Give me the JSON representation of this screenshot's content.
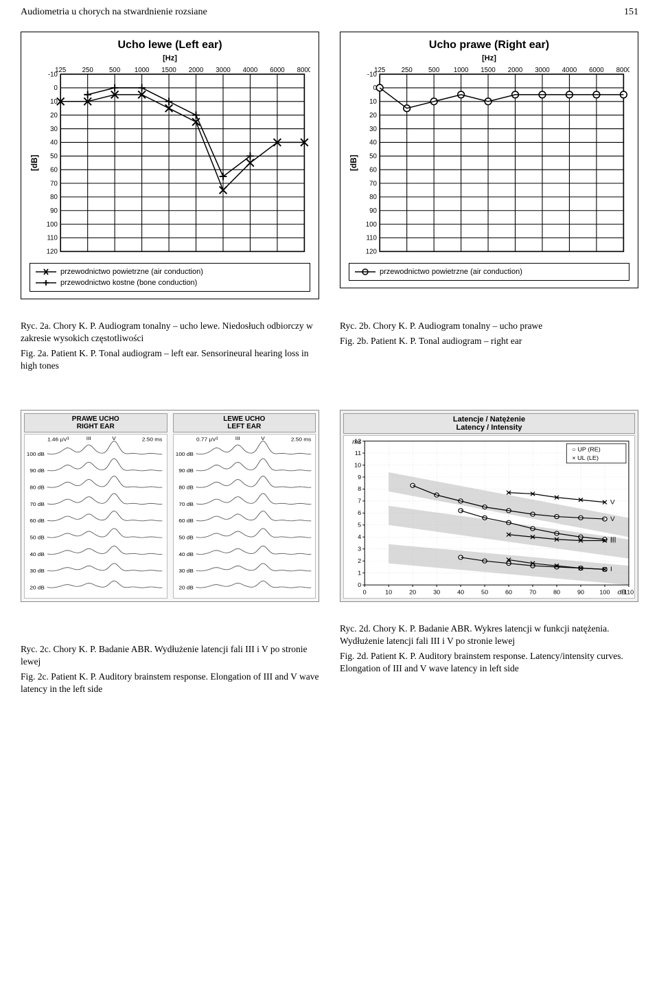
{
  "running_head": {
    "left": "Audiometria u chorych na stwardnienie rozsiane",
    "page": "151"
  },
  "audiogram_common": {
    "x_ticks": [
      125,
      250,
      500,
      1000,
      1500,
      2000,
      3000,
      4000,
      6000,
      8000
    ],
    "x_label": "[Hz]",
    "y_ticks": [
      -10,
      0,
      10,
      20,
      30,
      40,
      50,
      60,
      70,
      80,
      90,
      100,
      110,
      120
    ],
    "y_label": "[dB]",
    "grid_color": "#000000",
    "line_width": 1.4,
    "tick_fontsize": 9,
    "label_fontsize": 11,
    "title_fontsize": 16,
    "bg_color": "#ffffff",
    "box_border_color": "#000000"
  },
  "left_ear": {
    "title": "Ucho lewe (Left ear)",
    "air": {
      "marker": "x",
      "marker_size": 5,
      "color": "#000000",
      "data": [
        {
          "f": 125,
          "db": 10
        },
        {
          "f": 250,
          "db": 10
        },
        {
          "f": 500,
          "db": 5
        },
        {
          "f": 1000,
          "db": 5
        },
        {
          "f": 1500,
          "db": 15
        },
        {
          "f": 2000,
          "db": 25
        },
        {
          "f": 3000,
          "db": 75
        },
        {
          "f": 4000,
          "db": 55
        },
        {
          "f": 6000,
          "db": 40
        },
        {
          "f": 8000,
          "db": 40
        }
      ]
    },
    "bone": {
      "marker": "plus",
      "marker_size": 5,
      "color": "#000000",
      "data": [
        {
          "f": 250,
          "db": 5
        },
        {
          "f": 500,
          "db": 0
        },
        {
          "f": 1000,
          "db": 0
        },
        {
          "f": 1500,
          "db": 10
        },
        {
          "f": 2000,
          "db": 20
        },
        {
          "f": 3000,
          "db": 65
        },
        {
          "f": 4000,
          "db": 50
        }
      ]
    },
    "legend": [
      {
        "marker": "x",
        "label": "przewodnictwo powietrzne (air conduction)"
      },
      {
        "marker": "plus",
        "label": "przewodnictwo kostne (bone conduction)"
      }
    ]
  },
  "right_ear": {
    "title": "Ucho prawe (Right ear)",
    "air": {
      "marker": "o",
      "marker_size": 4.5,
      "color": "#000000",
      "data": [
        {
          "f": 125,
          "db": 0
        },
        {
          "f": 250,
          "db": 15
        },
        {
          "f": 500,
          "db": 10
        },
        {
          "f": 1000,
          "db": 5
        },
        {
          "f": 1500,
          "db": 10
        },
        {
          "f": 2000,
          "db": 5
        },
        {
          "f": 3000,
          "db": 5
        },
        {
          "f": 4000,
          "db": 5
        },
        {
          "f": 6000,
          "db": 5
        },
        {
          "f": 8000,
          "db": 5
        }
      ]
    },
    "legend": [
      {
        "marker": "o",
        "label": "przewodnictwo powietrzne (air conduction)"
      }
    ]
  },
  "captions_row1": {
    "left": {
      "line1": "Ryc. 2a. Chory K. P. Audiogram tonalny – ucho lewe. Niedosłuch odbiorczy w zakresie wysokich częstotliwości",
      "line2": "Fig. 2a. Patient K. P. Tonal audiogram – left ear. Sensorineural hearing loss in high tones"
    },
    "right": {
      "line1": "Ryc. 2b. Chory K. P. Audiogram tonalny – ucho prawe",
      "line2": "Fig. 2b. Patient K. P. Tonal audiogram – right ear"
    }
  },
  "abr": {
    "right_col_head": "PRAWE UCHO\nRIGHT EAR",
    "left_col_head": "LEWE UCHO\nLEFT EAR",
    "uv_right": "1.46 µV",
    "uv_left": "0.77 µV",
    "ms_scale": "2.50 ms",
    "db_levels": [
      100,
      90,
      80,
      70,
      60,
      50,
      40,
      30,
      20
    ],
    "wave_labels": [
      "I",
      "III",
      "V"
    ],
    "line_color": "#555555",
    "bg": "#f7f7f7",
    "label_fontsize": 8
  },
  "lat_int": {
    "title": "Latencje / Natężenie\nLatency / Intensity",
    "y_label": "ms",
    "y_ticks": [
      0,
      1,
      2,
      3,
      4,
      5,
      6,
      7,
      8,
      9,
      10,
      11,
      12
    ],
    "x_label": "dB",
    "x_ticks": [
      0,
      10,
      20,
      30,
      40,
      50,
      60,
      70,
      80,
      90,
      100,
      110
    ],
    "legend": [
      {
        "sym": "○",
        "label": "UP (RE)"
      },
      {
        "sym": "×",
        "label": "UL (LE)"
      }
    ],
    "norm_band_color": "#d9d9d9",
    "line_color": "#000000",
    "grid_color": "#bbbbbb",
    "series": {
      "right_III": [
        {
          "x": 40,
          "y": 6.2
        },
        {
          "x": 50,
          "y": 5.6
        },
        {
          "x": 60,
          "y": 5.2
        },
        {
          "x": 70,
          "y": 4.7
        },
        {
          "x": 80,
          "y": 4.3
        },
        {
          "x": 90,
          "y": 4.0
        },
        {
          "x": 100,
          "y": 3.8
        }
      ],
      "right_V": [
        {
          "x": 20,
          "y": 8.3
        },
        {
          "x": 30,
          "y": 7.5
        },
        {
          "x": 40,
          "y": 7.0
        },
        {
          "x": 50,
          "y": 6.5
        },
        {
          "x": 60,
          "y": 6.2
        },
        {
          "x": 70,
          "y": 5.9
        },
        {
          "x": 80,
          "y": 5.7
        },
        {
          "x": 90,
          "y": 5.6
        },
        {
          "x": 100,
          "y": 5.5
        }
      ],
      "left_III": [
        {
          "x": 60,
          "y": 4.2
        },
        {
          "x": 70,
          "y": 4.0
        },
        {
          "x": 80,
          "y": 3.8
        },
        {
          "x": 90,
          "y": 3.7
        },
        {
          "x": 100,
          "y": 3.7
        }
      ],
      "left_V": [
        {
          "x": 60,
          "y": 7.7
        },
        {
          "x": 70,
          "y": 7.6
        },
        {
          "x": 80,
          "y": 7.3
        },
        {
          "x": 90,
          "y": 7.1
        },
        {
          "x": 100,
          "y": 6.9
        }
      ],
      "left_I": [
        {
          "x": 60,
          "y": 2.1
        },
        {
          "x": 70,
          "y": 1.8
        },
        {
          "x": 80,
          "y": 1.6
        },
        {
          "x": 90,
          "y": 1.4
        },
        {
          "x": 100,
          "y": 1.3
        }
      ],
      "right_I": [
        {
          "x": 40,
          "y": 2.3
        },
        {
          "x": 50,
          "y": 2.0
        },
        {
          "x": 60,
          "y": 1.8
        },
        {
          "x": 70,
          "y": 1.6
        },
        {
          "x": 80,
          "y": 1.5
        },
        {
          "x": 90,
          "y": 1.4
        },
        {
          "x": 100,
          "y": 1.3
        }
      ]
    },
    "series_labels": {
      "I": "I",
      "III": "III",
      "V": "V"
    }
  },
  "captions_row2": {
    "left": {
      "line1": "Ryc. 2c. Chory K. P. Badanie ABR. Wydłużenie latencji fali III i V po stronie lewej",
      "line2": "Fig. 2c. Patient K. P. Auditory brainstem response. Elongation of III and V wave latency in the left side"
    },
    "right": {
      "line1": "Ryc. 2d. Chory K. P. Badanie ABR. Wykres latencji w funkcji natężenia. Wydłużenie latencji fali III i V po stronie lewej",
      "line2": "Fig. 2d. Patient K. P. Auditory brainstem response. Latency/intensity curves. Elongation of III and V wave latency in left side"
    }
  }
}
